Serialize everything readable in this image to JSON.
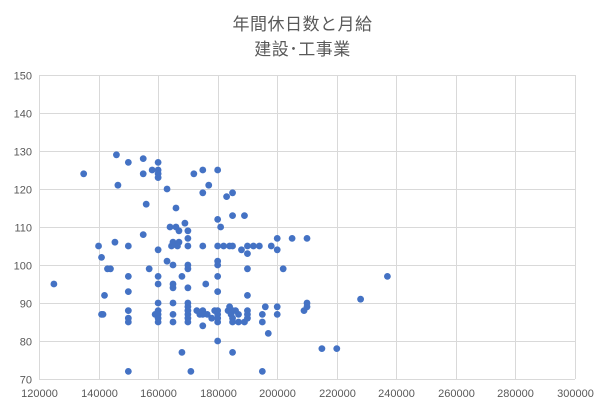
{
  "chart_data": {
    "type": "scatter",
    "title": "年間休日数と月給",
    "subtitle": "建設･工事業",
    "xlabel": "",
    "ylabel": "",
    "xlim": [
      120000,
      300000
    ],
    "ylim": [
      70,
      150
    ],
    "x_ticks": [
      120000,
      140000,
      160000,
      180000,
      200000,
      220000,
      240000,
      260000,
      280000,
      300000
    ],
    "y_ticks": [
      70,
      80,
      90,
      100,
      110,
      120,
      130,
      140,
      150
    ],
    "grid": true,
    "legend": "none",
    "marker_color": "#4472c4",
    "series": [
      {
        "points": [
          [
            125000,
            95
          ],
          [
            135000,
            124
          ],
          [
            140000,
            105
          ],
          [
            141000,
            102
          ],
          [
            141000,
            87
          ],
          [
            141500,
            87
          ],
          [
            142000,
            92
          ],
          [
            143000,
            99
          ],
          [
            144000,
            99
          ],
          [
            145500,
            106
          ],
          [
            146000,
            129
          ],
          [
            146500,
            121
          ],
          [
            150000,
            127
          ],
          [
            150000,
            105
          ],
          [
            150000,
            97
          ],
          [
            150000,
            93
          ],
          [
            150000,
            88
          ],
          [
            150000,
            86
          ],
          [
            150000,
            85
          ],
          [
            150000,
            72
          ],
          [
            155000,
            128
          ],
          [
            155000,
            124
          ],
          [
            155000,
            108
          ],
          [
            156000,
            116
          ],
          [
            157000,
            99
          ],
          [
            158000,
            125
          ],
          [
            159000,
            87
          ],
          [
            160000,
            127
          ],
          [
            160000,
            125
          ],
          [
            160000,
            124
          ],
          [
            160000,
            123
          ],
          [
            160000,
            104
          ],
          [
            160000,
            97
          ],
          [
            160000,
            95
          ],
          [
            160000,
            90
          ],
          [
            160000,
            88
          ],
          [
            160000,
            87
          ],
          [
            160000,
            86
          ],
          [
            160000,
            85
          ],
          [
            163000,
            120
          ],
          [
            163000,
            101
          ],
          [
            164000,
            110
          ],
          [
            164500,
            105
          ],
          [
            165000,
            106
          ],
          [
            165000,
            100
          ],
          [
            165000,
            95
          ],
          [
            165000,
            94
          ],
          [
            165000,
            90
          ],
          [
            165000,
            87
          ],
          [
            165000,
            85
          ],
          [
            166000,
            115
          ],
          [
            166000,
            110
          ],
          [
            166500,
            105
          ],
          [
            167000,
            106
          ],
          [
            167000,
            109
          ],
          [
            168000,
            77
          ],
          [
            168000,
            97
          ],
          [
            169000,
            111
          ],
          [
            170000,
            109
          ],
          [
            170000,
            107
          ],
          [
            170000,
            105
          ],
          [
            170000,
            100
          ],
          [
            170000,
            99
          ],
          [
            170000,
            94
          ],
          [
            170000,
            90
          ],
          [
            170000,
            89
          ],
          [
            170000,
            88
          ],
          [
            170000,
            87
          ],
          [
            170000,
            86
          ],
          [
            170000,
            85
          ],
          [
            171000,
            72
          ],
          [
            172000,
            124
          ],
          [
            173000,
            88
          ],
          [
            174000,
            87
          ],
          [
            175000,
            125
          ],
          [
            175000,
            119
          ],
          [
            175000,
            105
          ],
          [
            175000,
            88
          ],
          [
            175000,
            87
          ],
          [
            175000,
            84
          ],
          [
            176000,
            95
          ],
          [
            176500,
            87
          ],
          [
            177000,
            121
          ],
          [
            178000,
            86
          ],
          [
            179000,
            88
          ],
          [
            180000,
            125
          ],
          [
            180000,
            112
          ],
          [
            180000,
            105
          ],
          [
            180000,
            101
          ],
          [
            180000,
            100
          ],
          [
            180000,
            97
          ],
          [
            180000,
            93
          ],
          [
            180000,
            88
          ],
          [
            180000,
            87
          ],
          [
            180000,
            86
          ],
          [
            180000,
            85
          ],
          [
            180000,
            80
          ],
          [
            181000,
            110
          ],
          [
            182000,
            105
          ],
          [
            183000,
            118
          ],
          [
            183500,
            88
          ],
          [
            184000,
            105
          ],
          [
            184000,
            89
          ],
          [
            184500,
            87
          ],
          [
            185000,
            119
          ],
          [
            185000,
            113
          ],
          [
            185000,
            105
          ],
          [
            185000,
            88
          ],
          [
            185000,
            86
          ],
          [
            185000,
            85
          ],
          [
            185000,
            77
          ],
          [
            186000,
            88
          ],
          [
            187000,
            87
          ],
          [
            187000,
            85
          ],
          [
            188000,
            104
          ],
          [
            189000,
            113
          ],
          [
            189000,
            85
          ],
          [
            190000,
            105
          ],
          [
            190000,
            103
          ],
          [
            190000,
            99
          ],
          [
            190000,
            92
          ],
          [
            190000,
            88
          ],
          [
            190000,
            87
          ],
          [
            190000,
            86
          ],
          [
            192000,
            105
          ],
          [
            194000,
            105
          ],
          [
            195000,
            87
          ],
          [
            195000,
            72
          ],
          [
            195000,
            85
          ],
          [
            196000,
            89
          ],
          [
            197000,
            82
          ],
          [
            198000,
            105
          ],
          [
            200000,
            107
          ],
          [
            200000,
            104
          ],
          [
            200000,
            89
          ],
          [
            200000,
            87
          ],
          [
            202000,
            99
          ],
          [
            205000,
            107
          ],
          [
            209000,
            88
          ],
          [
            210000,
            107
          ],
          [
            210000,
            90
          ],
          [
            210000,
            89
          ],
          [
            215000,
            78
          ],
          [
            220000,
            78
          ],
          [
            228000,
            91
          ],
          [
            237000,
            97
          ]
        ]
      }
    ]
  }
}
